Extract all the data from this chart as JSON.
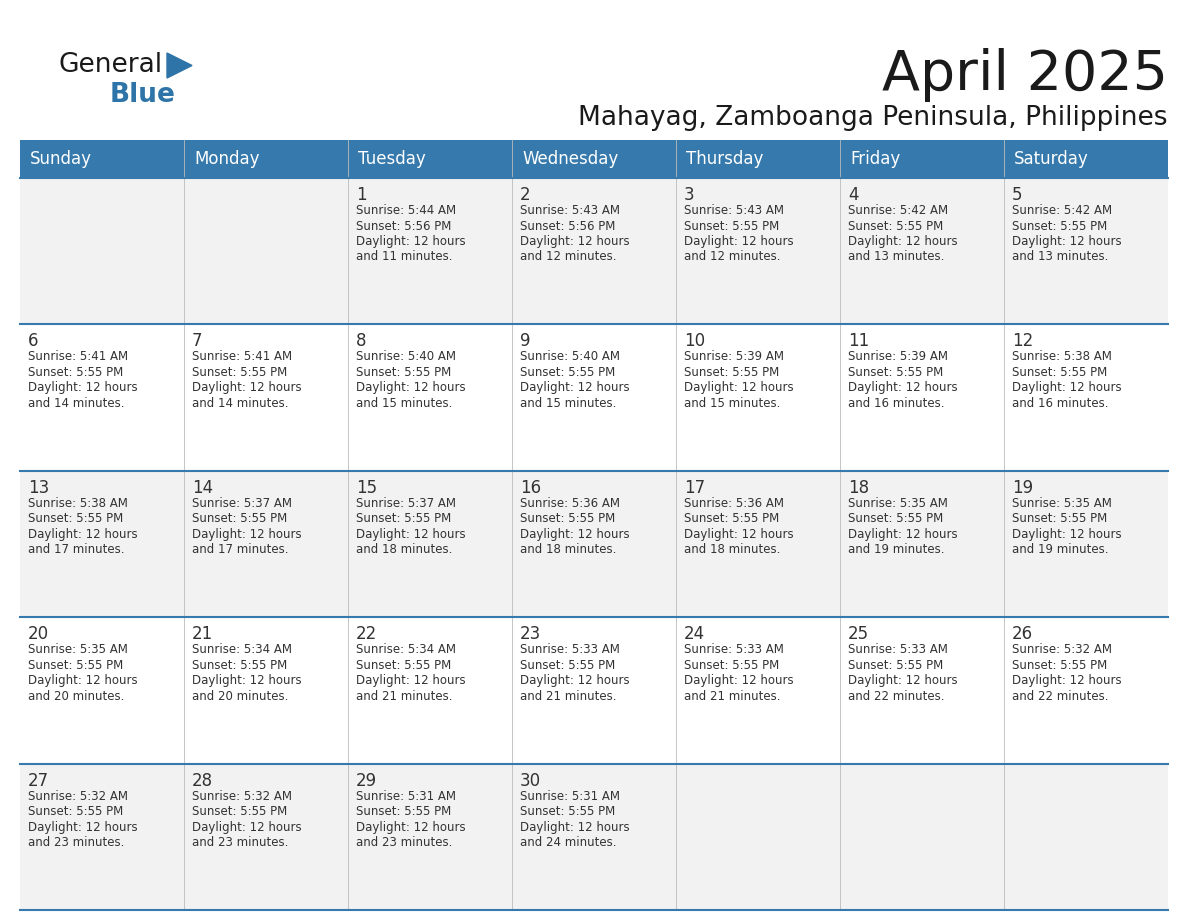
{
  "title": "April 2025",
  "subtitle": "Mahayag, Zamboanga Peninsula, Philippines",
  "header_bg": "#3579AD",
  "header_text_color": "#FFFFFF",
  "days_of_week": [
    "Sunday",
    "Monday",
    "Tuesday",
    "Wednesday",
    "Thursday",
    "Friday",
    "Saturday"
  ],
  "row_bg_even": "#F2F2F2",
  "row_bg_odd": "#FFFFFF",
  "grid_line_color": "#3579AD",
  "cell_text_color": "#333333",
  "title_color": "#1a1a1a",
  "subtitle_color": "#1a1a1a",
  "logo_general_color": "#1a1a1a",
  "logo_blue_color": "#2E74A8",
  "calendar_data": [
    [
      {
        "day": "",
        "info": ""
      },
      {
        "day": "",
        "info": ""
      },
      {
        "day": "1",
        "info": "Sunrise: 5:44 AM\nSunset: 5:56 PM\nDaylight: 12 hours\nand 11 minutes."
      },
      {
        "day": "2",
        "info": "Sunrise: 5:43 AM\nSunset: 5:56 PM\nDaylight: 12 hours\nand 12 minutes."
      },
      {
        "day": "3",
        "info": "Sunrise: 5:43 AM\nSunset: 5:55 PM\nDaylight: 12 hours\nand 12 minutes."
      },
      {
        "day": "4",
        "info": "Sunrise: 5:42 AM\nSunset: 5:55 PM\nDaylight: 12 hours\nand 13 minutes."
      },
      {
        "day": "5",
        "info": "Sunrise: 5:42 AM\nSunset: 5:55 PM\nDaylight: 12 hours\nand 13 minutes."
      }
    ],
    [
      {
        "day": "6",
        "info": "Sunrise: 5:41 AM\nSunset: 5:55 PM\nDaylight: 12 hours\nand 14 minutes."
      },
      {
        "day": "7",
        "info": "Sunrise: 5:41 AM\nSunset: 5:55 PM\nDaylight: 12 hours\nand 14 minutes."
      },
      {
        "day": "8",
        "info": "Sunrise: 5:40 AM\nSunset: 5:55 PM\nDaylight: 12 hours\nand 15 minutes."
      },
      {
        "day": "9",
        "info": "Sunrise: 5:40 AM\nSunset: 5:55 PM\nDaylight: 12 hours\nand 15 minutes."
      },
      {
        "day": "10",
        "info": "Sunrise: 5:39 AM\nSunset: 5:55 PM\nDaylight: 12 hours\nand 15 minutes."
      },
      {
        "day": "11",
        "info": "Sunrise: 5:39 AM\nSunset: 5:55 PM\nDaylight: 12 hours\nand 16 minutes."
      },
      {
        "day": "12",
        "info": "Sunrise: 5:38 AM\nSunset: 5:55 PM\nDaylight: 12 hours\nand 16 minutes."
      }
    ],
    [
      {
        "day": "13",
        "info": "Sunrise: 5:38 AM\nSunset: 5:55 PM\nDaylight: 12 hours\nand 17 minutes."
      },
      {
        "day": "14",
        "info": "Sunrise: 5:37 AM\nSunset: 5:55 PM\nDaylight: 12 hours\nand 17 minutes."
      },
      {
        "day": "15",
        "info": "Sunrise: 5:37 AM\nSunset: 5:55 PM\nDaylight: 12 hours\nand 18 minutes."
      },
      {
        "day": "16",
        "info": "Sunrise: 5:36 AM\nSunset: 5:55 PM\nDaylight: 12 hours\nand 18 minutes."
      },
      {
        "day": "17",
        "info": "Sunrise: 5:36 AM\nSunset: 5:55 PM\nDaylight: 12 hours\nand 18 minutes."
      },
      {
        "day": "18",
        "info": "Sunrise: 5:35 AM\nSunset: 5:55 PM\nDaylight: 12 hours\nand 19 minutes."
      },
      {
        "day": "19",
        "info": "Sunrise: 5:35 AM\nSunset: 5:55 PM\nDaylight: 12 hours\nand 19 minutes."
      }
    ],
    [
      {
        "day": "20",
        "info": "Sunrise: 5:35 AM\nSunset: 5:55 PM\nDaylight: 12 hours\nand 20 minutes."
      },
      {
        "day": "21",
        "info": "Sunrise: 5:34 AM\nSunset: 5:55 PM\nDaylight: 12 hours\nand 20 minutes."
      },
      {
        "day": "22",
        "info": "Sunrise: 5:34 AM\nSunset: 5:55 PM\nDaylight: 12 hours\nand 21 minutes."
      },
      {
        "day": "23",
        "info": "Sunrise: 5:33 AM\nSunset: 5:55 PM\nDaylight: 12 hours\nand 21 minutes."
      },
      {
        "day": "24",
        "info": "Sunrise: 5:33 AM\nSunset: 5:55 PM\nDaylight: 12 hours\nand 21 minutes."
      },
      {
        "day": "25",
        "info": "Sunrise: 5:33 AM\nSunset: 5:55 PM\nDaylight: 12 hours\nand 22 minutes."
      },
      {
        "day": "26",
        "info": "Sunrise: 5:32 AM\nSunset: 5:55 PM\nDaylight: 12 hours\nand 22 minutes."
      }
    ],
    [
      {
        "day": "27",
        "info": "Sunrise: 5:32 AM\nSunset: 5:55 PM\nDaylight: 12 hours\nand 23 minutes."
      },
      {
        "day": "28",
        "info": "Sunrise: 5:32 AM\nSunset: 5:55 PM\nDaylight: 12 hours\nand 23 minutes."
      },
      {
        "day": "29",
        "info": "Sunrise: 5:31 AM\nSunset: 5:55 PM\nDaylight: 12 hours\nand 23 minutes."
      },
      {
        "day": "30",
        "info": "Sunrise: 5:31 AM\nSunset: 5:55 PM\nDaylight: 12 hours\nand 24 minutes."
      },
      {
        "day": "",
        "info": ""
      },
      {
        "day": "",
        "info": ""
      },
      {
        "day": "",
        "info": ""
      }
    ]
  ]
}
